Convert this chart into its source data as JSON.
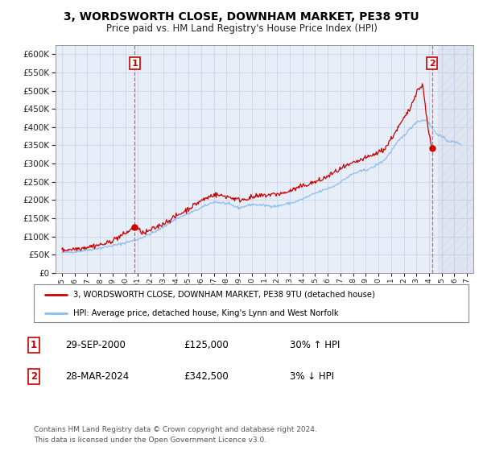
{
  "title": "3, WORDSWORTH CLOSE, DOWNHAM MARKET, PE38 9TU",
  "subtitle": "Price paid vs. HM Land Registry's House Price Index (HPI)",
  "ylim": [
    0,
    625000
  ],
  "yticks": [
    0,
    50000,
    100000,
    150000,
    200000,
    250000,
    300000,
    350000,
    400000,
    450000,
    500000,
    550000,
    600000
  ],
  "xlim_start": 1994.5,
  "xlim_end": 2027.5,
  "background_color": "#e8eef8",
  "grid_color": "#c8d4e8",
  "hpi_line_color": "#88bbee",
  "price_line_color": "#cc0000",
  "sale1_year": 2000.75,
  "sale1_price": 125000,
  "sale1_label": "1",
  "sale2_year": 2024.23,
  "sale2_price": 342500,
  "sale2_label": "2",
  "legend_line1": "3, WORDSWORTH CLOSE, DOWNHAM MARKET, PE38 9TU (detached house)",
  "legend_line2": "HPI: Average price, detached house, King's Lynn and West Norfolk",
  "annotation1_date": "29-SEP-2000",
  "annotation1_price": "£125,000",
  "annotation1_hpi": "30% ↑ HPI",
  "annotation2_date": "28-MAR-2024",
  "annotation2_price": "£342,500",
  "annotation2_hpi": "3% ↓ HPI",
  "footer": "Contains HM Land Registry data © Crown copyright and database right 2024.\nThis data is licensed under the Open Government Licence v3.0.",
  "hatch_start": 2024.7,
  "title_fontsize": 10,
  "subtitle_fontsize": 8.5
}
